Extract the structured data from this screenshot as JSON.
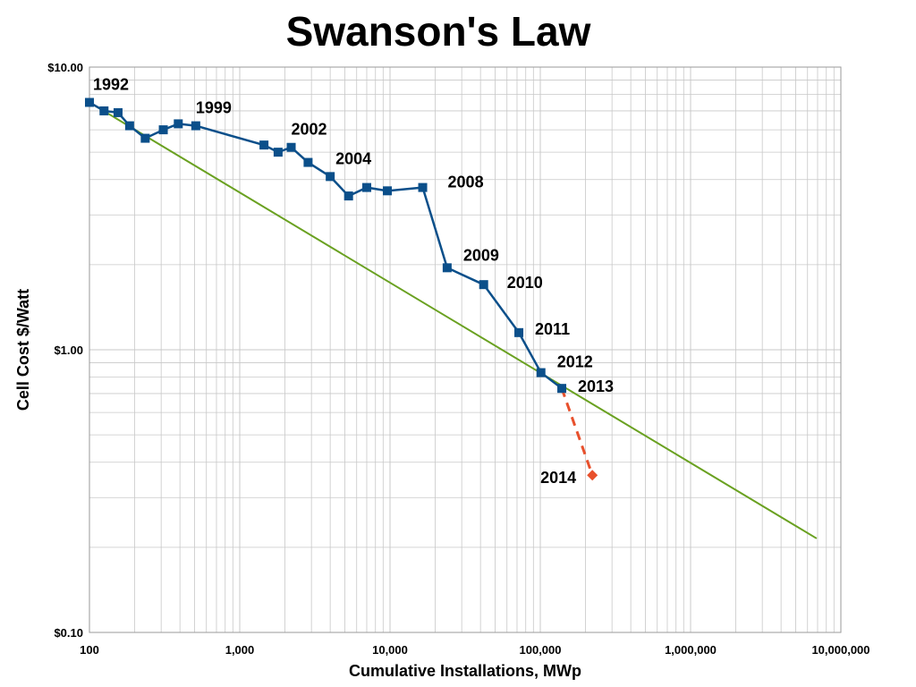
{
  "chart_data": {
    "type": "line",
    "title": "Swanson's Law",
    "xlabel": "Cumulative Installations, MWp",
    "ylabel": "Cell Cost $/Watt",
    "xscale": "log",
    "yscale": "log",
    "xlim": [
      100,
      10000000
    ],
    "ylim": [
      0.1,
      10
    ],
    "grid": true,
    "x_tick_labels": [
      "100",
      "1,000",
      "10,000",
      "100,000",
      "1,000,000",
      "10,000,000"
    ],
    "y_tick_labels": [
      "$0.10",
      "$1.00",
      "$10.00"
    ],
    "colors": {
      "historical": "#0b4f8a",
      "projection": "#e8502c",
      "trend": "#6aa121",
      "grid": "#c8c8c8"
    },
    "series": [
      {
        "id": "historical",
        "points": [
          {
            "x": 100,
            "y": 7.5,
            "label": "1992"
          },
          {
            "x": 125,
            "y": 7.0,
            "label": ""
          },
          {
            "x": 155,
            "y": 6.9,
            "label": ""
          },
          {
            "x": 185,
            "y": 6.2,
            "label": ""
          },
          {
            "x": 235,
            "y": 5.6,
            "label": ""
          },
          {
            "x": 310,
            "y": 6.0,
            "label": ""
          },
          {
            "x": 390,
            "y": 6.3,
            "label": ""
          },
          {
            "x": 510,
            "y": 6.2,
            "label": "1999"
          },
          {
            "x": 1450,
            "y": 5.3,
            "label": ""
          },
          {
            "x": 1800,
            "y": 5.0,
            "label": ""
          },
          {
            "x": 2200,
            "y": 5.2,
            "label": "2002"
          },
          {
            "x": 2850,
            "y": 4.6,
            "label": ""
          },
          {
            "x": 4000,
            "y": 4.1,
            "label": "2004"
          },
          {
            "x": 5300,
            "y": 3.5,
            "label": ""
          },
          {
            "x": 7000,
            "y": 3.75,
            "label": ""
          },
          {
            "x": 9600,
            "y": 3.65,
            "label": ""
          },
          {
            "x": 16500,
            "y": 3.75,
            "label": "2008"
          },
          {
            "x": 24000,
            "y": 1.95,
            "label": "2009"
          },
          {
            "x": 42000,
            "y": 1.7,
            "label": "2010"
          },
          {
            "x": 72000,
            "y": 1.15,
            "label": "2011"
          },
          {
            "x": 101000,
            "y": 0.83,
            "label": "2012"
          },
          {
            "x": 139000,
            "y": 0.73,
            "label": "2013"
          }
        ]
      },
      {
        "id": "projection",
        "style": "dashed",
        "points": [
          {
            "x": 139000,
            "y": 0.73,
            "label": ""
          },
          {
            "x": 222000,
            "y": 0.36,
            "label": "2014"
          }
        ]
      },
      {
        "id": "trend",
        "points": [
          {
            "x": 100,
            "y": 7.5,
            "label": ""
          },
          {
            "x": 6900000,
            "y": 0.215,
            "label": ""
          }
        ]
      }
    ]
  }
}
